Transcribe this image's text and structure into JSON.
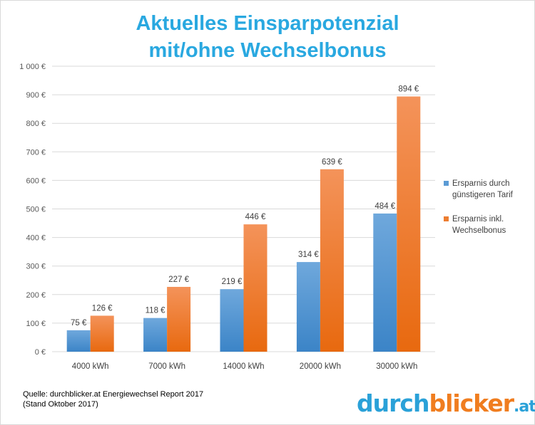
{
  "title_line1": "Aktuelles Einsparpotenzial",
  "title_line2": "mit/ohne Wechselbonus",
  "chart_data": {
    "type": "bar",
    "title": "Aktuelles Einsparpotenzial mit/ohne Wechselbonus",
    "categories": [
      "4000 kWh",
      "7000 kWh",
      "14000 kWh",
      "20000 kWh",
      "30000 kWh"
    ],
    "series": [
      {
        "name": "Ersparnis durch günstigeren Tarif",
        "values": [
          75,
          118,
          219,
          314,
          484
        ],
        "labels": [
          "75 €",
          "118 €",
          "219 €",
          "314 €",
          "484 €"
        ],
        "color": "#5b9bd5"
      },
      {
        "name": "Ersparnis inkl. Wechselbonus",
        "values": [
          126,
          227,
          446,
          639,
          894
        ],
        "labels": [
          "126 €",
          "227 €",
          "446 €",
          "639 €",
          "894 €"
        ],
        "color": "#ed7d31"
      }
    ],
    "ylim": [
      0,
      1000
    ],
    "yticks": [
      0,
      100,
      200,
      300,
      400,
      500,
      600,
      700,
      800,
      900,
      1000
    ],
    "ytick_labels": [
      "0 €",
      "100 €",
      "200 €",
      "300 €",
      "400 €",
      "500 €",
      "600 €",
      "700 €",
      "800 €",
      "900 €",
      "1 000 €"
    ],
    "grid": true,
    "legend_position": "right"
  },
  "legend": {
    "item1_line1": "Ersparnis durch",
    "item1_line2": "günstigeren Tarif",
    "item2_line1": "Ersparnis inkl.",
    "item2_line2": "Wechselbonus"
  },
  "source_line1": "Quelle: durchblicker.at Energiewechsel Report 2017",
  "source_line2": "(Stand Oktober 2017)",
  "logo": {
    "part1": "durch",
    "part2": "blicker",
    "part3": ".at"
  }
}
